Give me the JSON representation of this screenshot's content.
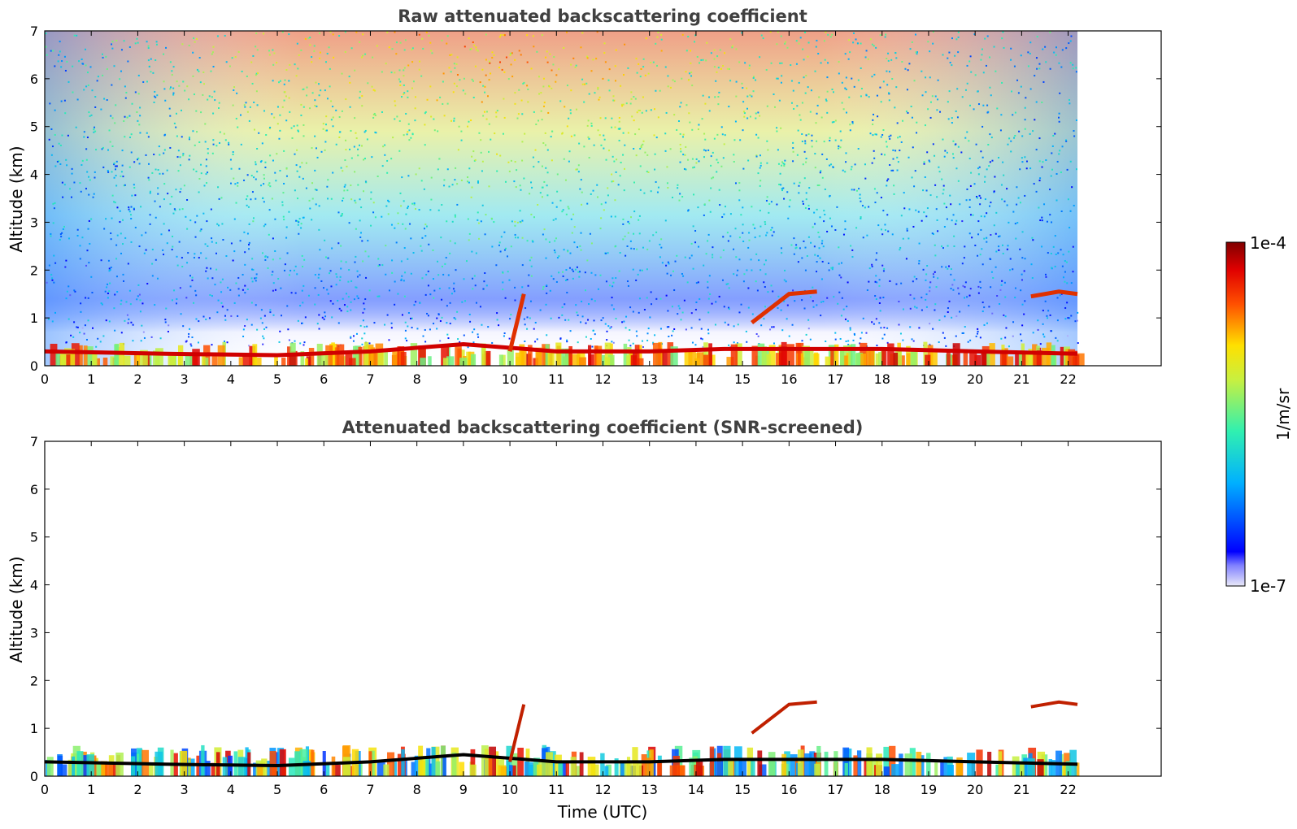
{
  "chart_data": [
    {
      "type": "heatmap",
      "title": "Raw attenuated backscattering coefficient",
      "xlabel": "",
      "ylabel": "Altitude (km)",
      "xlim": [
        0,
        24
      ],
      "ylim": [
        0,
        7
      ],
      "x_ticks": [
        0,
        1,
        2,
        3,
        4,
        5,
        6,
        7,
        8,
        9,
        10,
        11,
        12,
        13,
        14,
        15,
        16,
        17,
        18,
        19,
        20,
        21,
        22
      ],
      "y_ticks": [
        0,
        1,
        2,
        3,
        4,
        5,
        6,
        7
      ],
      "data_time_range": [
        0,
        22.2
      ],
      "signal_layers": [
        {
          "x": [
            0,
            2.6,
            5,
            7,
            9,
            11,
            13,
            14.6,
            16,
            18,
            20,
            22.2
          ],
          "y": [
            0.3,
            0.25,
            0.22,
            0.3,
            0.45,
            0.3,
            0.3,
            0.35,
            0.35,
            0.35,
            0.3,
            0.25
          ]
        }
      ],
      "cloud_features": [
        {
          "x": [
            15.2,
            16,
            16.6
          ],
          "y": [
            0.9,
            1.5,
            1.55
          ]
        },
        {
          "x": [
            21.2,
            21.8,
            22.2
          ],
          "y": [
            1.45,
            1.55,
            1.5
          ]
        },
        {
          "x": [
            10,
            10.3
          ],
          "y": [
            0.3,
            1.5
          ]
        }
      ]
    },
    {
      "type": "heatmap",
      "title": "Attenuated backscattering coefficient (SNR-screened)",
      "xlabel": "Time (UTC)",
      "ylabel": "Altitude (km)",
      "xlim": [
        0,
        24
      ],
      "ylim": [
        0,
        7
      ],
      "x_ticks": [
        0,
        1,
        2,
        3,
        4,
        5,
        6,
        7,
        8,
        9,
        10,
        11,
        12,
        13,
        14,
        15,
        16,
        17,
        18,
        19,
        20,
        21,
        22
      ],
      "y_ticks": [
        0,
        1,
        2,
        3,
        4,
        5,
        6,
        7
      ],
      "data_time_range": [
        0,
        22.2
      ]
    }
  ],
  "colorbar": {
    "label": "1/m/sr",
    "max_label": "1e-4",
    "min_label": "1e-7",
    "scale": "log",
    "range": [
      1e-07,
      0.0001
    ],
    "colormap": [
      "#e8e8f8",
      "#0000ff",
      "#00c8ff",
      "#50ff90",
      "#f8f800",
      "#ff7000",
      "#e00000",
      "#800000"
    ]
  }
}
